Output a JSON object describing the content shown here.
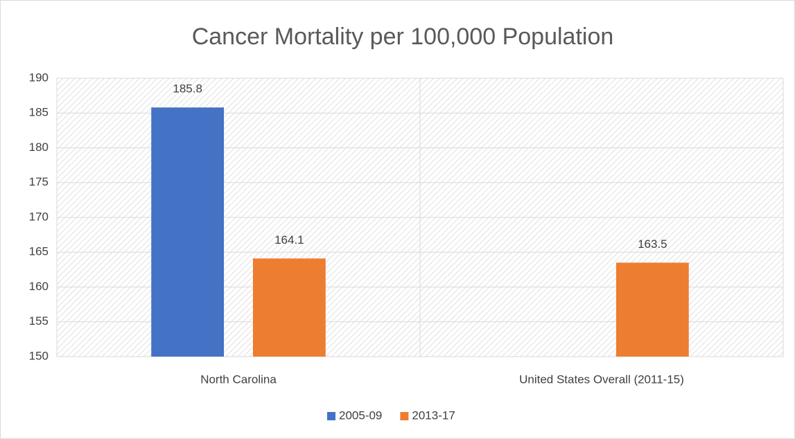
{
  "chart_data": {
    "type": "bar",
    "title": "Cancer Mortality per 100,000 Population",
    "categories": [
      "North Carolina",
      "United States Overall (2011-15)"
    ],
    "series": [
      {
        "name": "2005-09",
        "color": "#4472c4",
        "values": [
          185.8,
          null
        ]
      },
      {
        "name": "2013-17",
        "color": "#ed7d31",
        "values": [
          164.1,
          163.5
        ]
      }
    ],
    "ylim": [
      150,
      190
    ],
    "yticks": [
      150,
      155,
      160,
      165,
      170,
      175,
      180,
      185,
      190
    ],
    "grid": true,
    "legend": "bottom",
    "data_labels": true
  }
}
